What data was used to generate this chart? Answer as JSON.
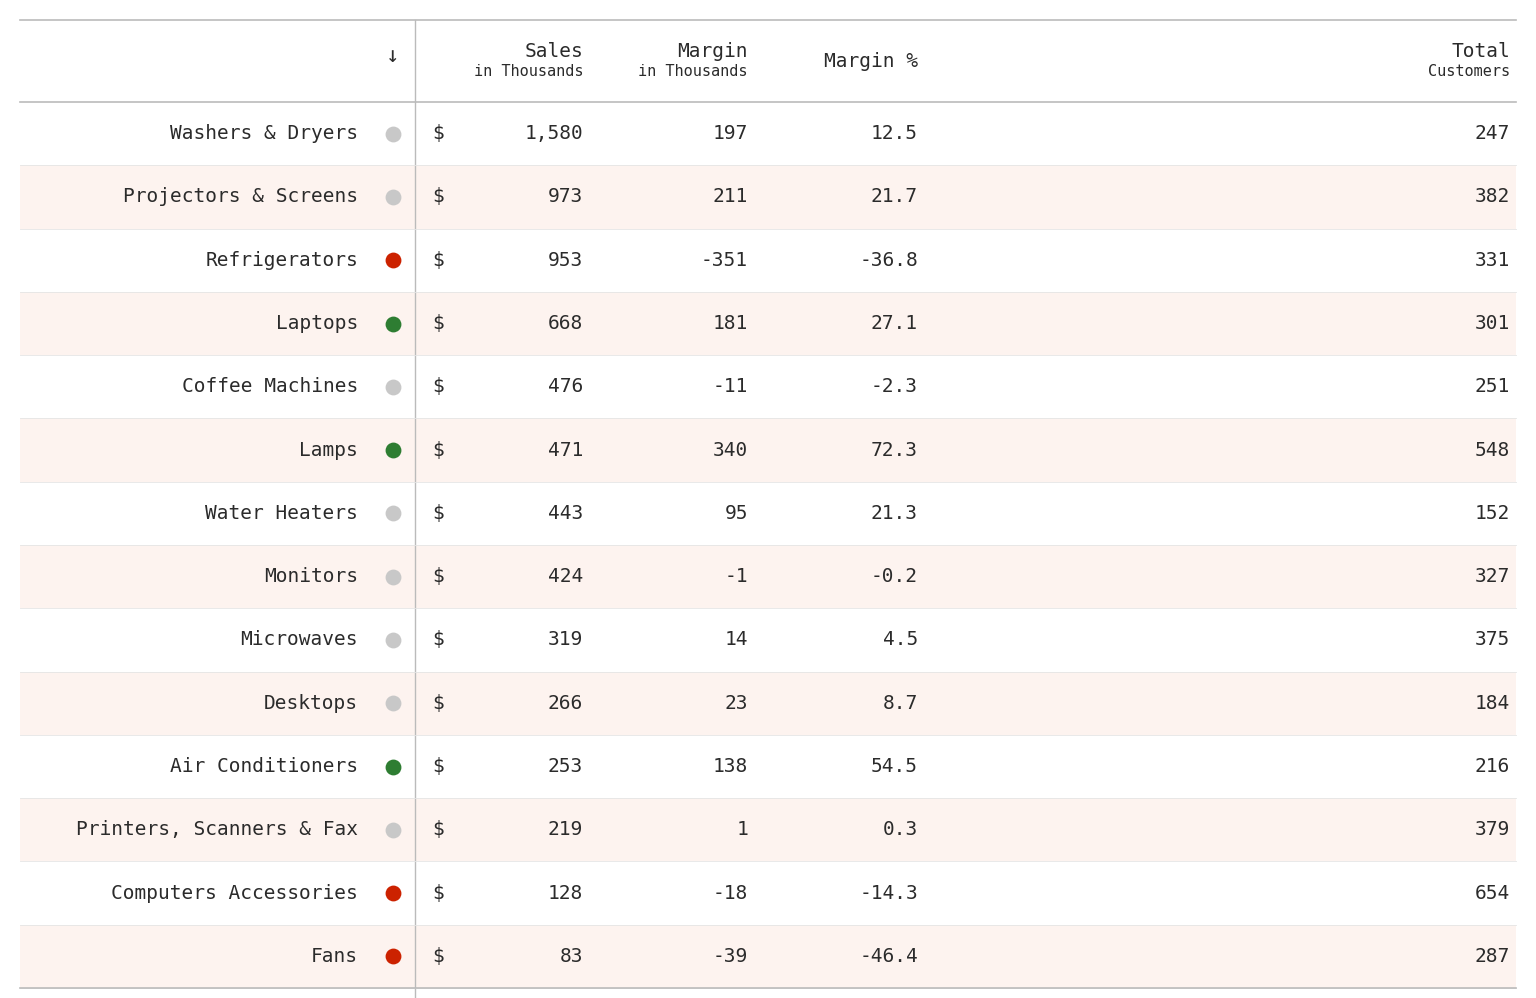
{
  "rows": [
    {
      "name": "Washers & Dryers",
      "dot": "gray",
      "sales": "1,580",
      "margin": "197",
      "margin_pct": "12.5",
      "customers": "247"
    },
    {
      "name": "Projectors & Screens",
      "dot": "gray",
      "sales": "973",
      "margin": "211",
      "margin_pct": "21.7",
      "customers": "382"
    },
    {
      "name": "Refrigerators",
      "dot": "red",
      "sales": "953",
      "margin": "-351",
      "margin_pct": "-36.8",
      "customers": "331"
    },
    {
      "name": "Laptops",
      "dot": "green",
      "sales": "668",
      "margin": "181",
      "margin_pct": "27.1",
      "customers": "301"
    },
    {
      "name": "Coffee Machines",
      "dot": "gray",
      "sales": "476",
      "margin": "-11",
      "margin_pct": "-2.3",
      "customers": "251"
    },
    {
      "name": "Lamps",
      "dot": "green",
      "sales": "471",
      "margin": "340",
      "margin_pct": "72.3",
      "customers": "548"
    },
    {
      "name": "Water Heaters",
      "dot": "gray",
      "sales": "443",
      "margin": "95",
      "margin_pct": "21.3",
      "customers": "152"
    },
    {
      "name": "Monitors",
      "dot": "gray",
      "sales": "424",
      "margin": "-1",
      "margin_pct": "-0.2",
      "customers": "327"
    },
    {
      "name": "Microwaves",
      "dot": "gray",
      "sales": "319",
      "margin": "14",
      "margin_pct": "4.5",
      "customers": "375"
    },
    {
      "name": "Desktops",
      "dot": "gray",
      "sales": "266",
      "margin": "23",
      "margin_pct": "8.7",
      "customers": "184"
    },
    {
      "name": "Air Conditioners",
      "dot": "green",
      "sales": "253",
      "margin": "138",
      "margin_pct": "54.5",
      "customers": "216"
    },
    {
      "name": "Printers, Scanners & Fax",
      "dot": "gray",
      "sales": "219",
      "margin": "1",
      "margin_pct": "0.3",
      "customers": "379"
    },
    {
      "name": "Computers Accessories",
      "dot": "red",
      "sales": "128",
      "margin": "-18",
      "margin_pct": "-14.3",
      "customers": "654"
    },
    {
      "name": "Fans",
      "dot": "red",
      "sales": "83",
      "margin": "-39",
      "margin_pct": "-46.4",
      "customers": "287"
    }
  ],
  "header_bg": "#ffffff",
  "row_bg_white": "#ffffff",
  "row_bg_pink": "#fdf3ef",
  "text_color": "#2b2b2b",
  "header_text_color": "#2b2b2b",
  "dot_colors": {
    "gray": "#c8c8c8",
    "red": "#cc2200",
    "green": "#2e7d32"
  },
  "font_family": "monospace",
  "font_size": 14,
  "header_font_size": 14,
  "header_subtext_font_size": 11
}
